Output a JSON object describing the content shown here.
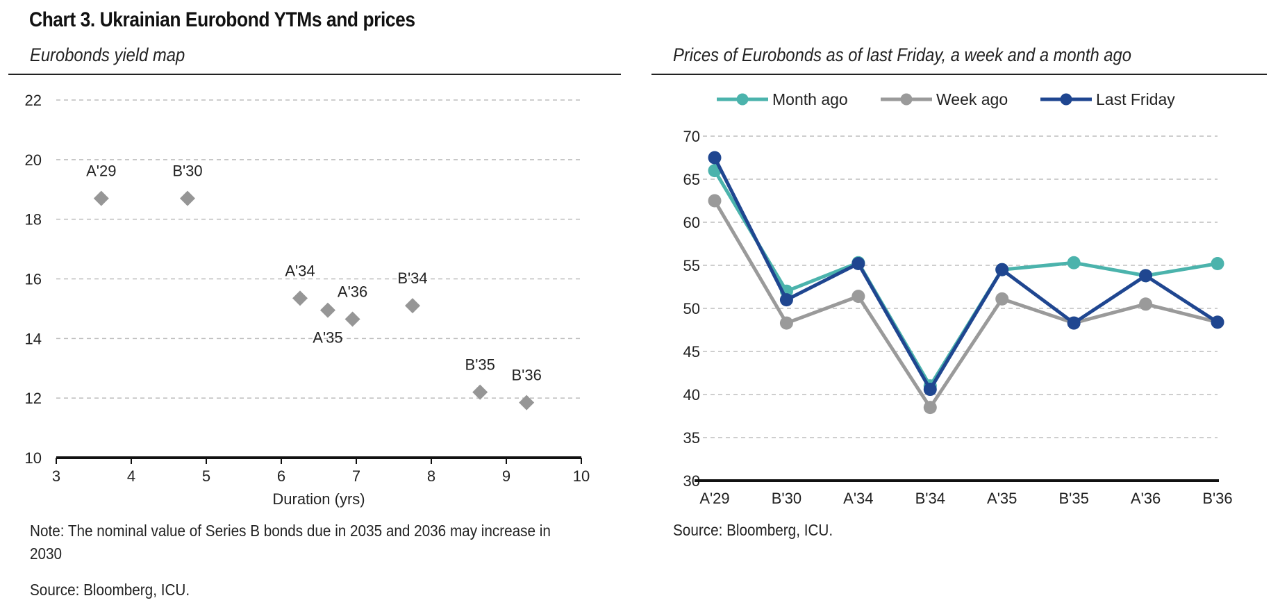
{
  "header": {
    "title": "Chart 3. Ukrainian Eurobond YTMs and prices"
  },
  "left_panel": {
    "subtitle": "Eurobonds yield map",
    "note_line1": "Note: The nominal value of Series B bonds due in 2035 and 2036 may increase in",
    "note_line2": "2030",
    "source": "Source: Bloomberg, ICU."
  },
  "right_panel": {
    "subtitle": "Prices of Eurobonds as of last Friday, a week and a month ago",
    "source": "Source: Bloomberg, ICU."
  },
  "chart_data": [
    {
      "type": "scatter",
      "title": "Eurobonds yield map",
      "xlabel": "Duration (yrs)",
      "ylabel": "",
      "xlim": [
        3,
        10
      ],
      "ylim": [
        10,
        22
      ],
      "xticks": [
        3,
        4,
        5,
        6,
        7,
        8,
        9,
        10
      ],
      "yticks": [
        10,
        12,
        14,
        16,
        18,
        20,
        22
      ],
      "grid": true,
      "marker": "diamond",
      "color": "#969696",
      "points": [
        {
          "label": "A'29",
          "x": 3.6,
          "y": 18.7
        },
        {
          "label": "B'30",
          "x": 4.75,
          "y": 18.7
        },
        {
          "label": "A'34",
          "x": 6.25,
          "y": 15.35
        },
        {
          "label": "A'35",
          "x": 6.62,
          "y": 14.95
        },
        {
          "label": "A'36",
          "x": 6.95,
          "y": 14.65
        },
        {
          "label": "B'34",
          "x": 7.75,
          "y": 15.1
        },
        {
          "label": "B'35",
          "x": 8.65,
          "y": 12.2
        },
        {
          "label": "B'36",
          "x": 9.27,
          "y": 11.85
        }
      ]
    },
    {
      "type": "line",
      "title": "Prices of Eurobonds as of last Friday, a week and a month ago",
      "xlabel": "",
      "ylabel": "",
      "categories": [
        "A'29",
        "B'30",
        "A'34",
        "B'34",
        "A'35",
        "B'35",
        "A'36",
        "B'36"
      ],
      "ylim": [
        30,
        70
      ],
      "yticks": [
        30,
        35,
        40,
        45,
        50,
        55,
        60,
        65,
        70
      ],
      "grid": true,
      "legend_position": "top",
      "series": [
        {
          "name": "Month ago",
          "color": "#4BB3AC",
          "values": [
            66.0,
            52.0,
            55.3,
            41.0,
            54.5,
            55.3,
            53.8,
            55.2
          ]
        },
        {
          "name": "Week ago",
          "color": "#9A9A9A",
          "values": [
            62.5,
            48.3,
            51.4,
            38.5,
            51.1,
            48.3,
            50.5,
            48.4
          ]
        },
        {
          "name": "Last Friday",
          "color": "#1F4690",
          "values": [
            67.5,
            51.0,
            55.2,
            40.6,
            54.5,
            48.3,
            53.8,
            48.4
          ]
        }
      ]
    }
  ]
}
